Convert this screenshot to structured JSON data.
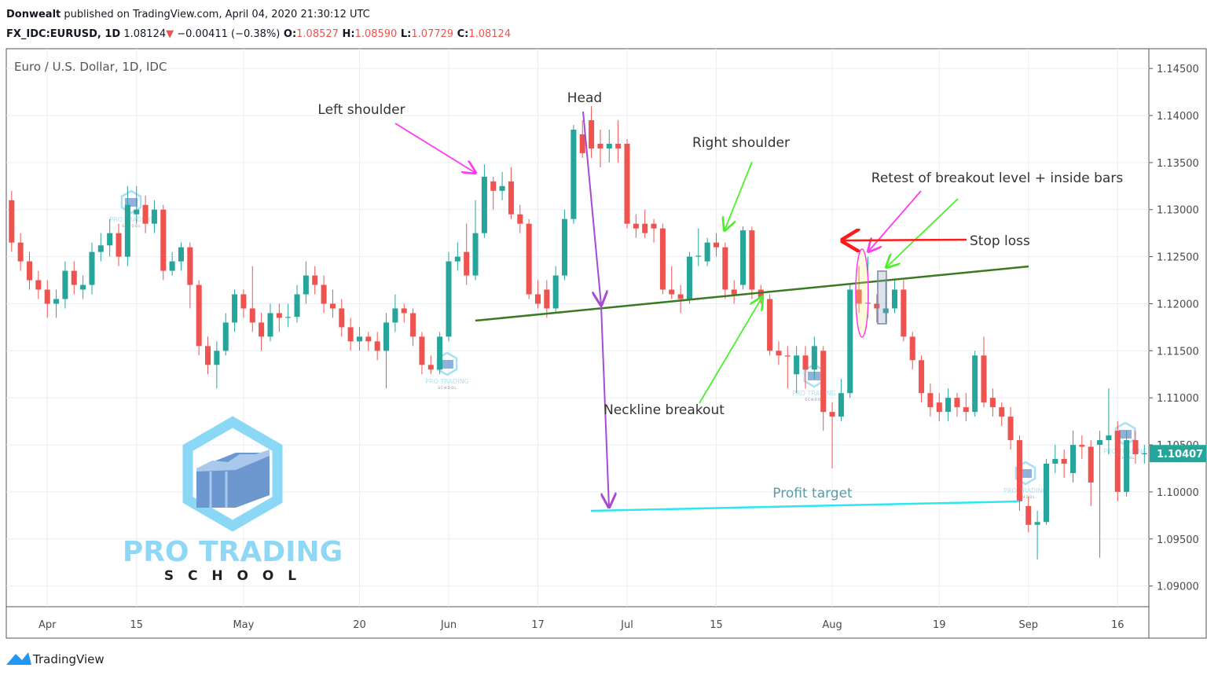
{
  "header": {
    "author": "Donwealt",
    "published": " published on TradingView.com, April 04, 2020 21:30:12 UTC",
    "symbol": "FX_IDC:EURUSD, 1D",
    "last": " 1.08124",
    "arrow": "▼",
    "change": " −0.00411 (−0.38%)",
    "o_label": " O:",
    "o": "1.08527",
    "h_label": " H:",
    "h": "1.08590",
    "l_label": " L:",
    "l": "1.07729",
    "c_label": " C:",
    "c": "1.08124"
  },
  "chart_data": {
    "type": "candlestick",
    "legend_title": "Euro / U.S. Dollar, 1D, IDC",
    "categories": [
      null,
      null,
      null,
      null,
      "Apr",
      null,
      null,
      null,
      null,
      null,
      null,
      null,
      null,
      null,
      "15",
      null,
      null,
      null,
      null,
      null,
      null,
      null,
      null,
      null,
      null,
      null,
      "May",
      null,
      null,
      null,
      null,
      null,
      null,
      null,
      null,
      null,
      null,
      null,
      null,
      "20",
      null,
      null,
      null,
      null,
      null,
      null,
      null,
      null,
      null,
      "Jun",
      null,
      null,
      null,
      null,
      null,
      null,
      null,
      null,
      null,
      "17",
      null,
      null,
      null,
      null,
      null,
      null,
      null,
      null,
      null,
      "Jul",
      null,
      null,
      null,
      null,
      null,
      null,
      null,
      null,
      null,
      "15",
      null,
      null,
      null,
      null,
      null,
      null,
      null,
      null,
      null,
      null,
      null,
      null,
      "Aug",
      null,
      null,
      null,
      null,
      null,
      null,
      null,
      null,
      null,
      null,
      null,
      "19",
      null,
      null,
      null,
      null,
      null,
      null,
      null,
      null,
      null,
      "Sep",
      null,
      null,
      null,
      null,
      null,
      null,
      null,
      null,
      null,
      "16",
      null,
      null,
      null
    ],
    "open": [
      1.131,
      1.1265,
      1.1245,
      1.1225,
      1.1215,
      1.12,
      1.1205,
      1.1235,
      1.1215,
      1.122,
      1.1255,
      1.1262,
      1.1275,
      1.125,
      1.1295,
      1.1305,
      1.1285,
      1.13,
      1.1235,
      1.1245,
      1.126,
      1.122,
      1.1155,
      1.1135,
      1.115,
      1.118,
      1.121,
      1.1195,
      1.118,
      1.1165,
      1.119,
      1.1185,
      1.1186,
      1.121,
      1.123,
      1.122,
      1.12,
      1.1195,
      1.1175,
      1.116,
      1.1165,
      1.116,
      1.115,
      1.118,
      1.1195,
      1.119,
      1.1165,
      1.1135,
      1.113,
      1.1165,
      1.1245,
      1.1255,
      1.123,
      1.1275,
      1.133,
      1.132,
      1.133,
      1.1295,
      1.1285,
      1.121,
      1.1215,
      1.1195,
      1.123,
      1.129,
      1.138,
      1.1395,
      1.137,
      1.1365,
      1.137,
      1.137,
      1.1285,
      1.1285,
      1.1285,
      1.128,
      1.1215,
      1.121,
      1.1205,
      1.125,
      1.1245,
      1.1265,
      1.126,
      1.1215,
      1.122,
      1.1278,
      1.1215,
      1.1205,
      1.115,
      1.1145,
      1.1125,
      1.1145,
      1.113,
      1.115,
      1.1085,
      1.108,
      1.1105,
      1.1215,
      1.12,
      1.12,
      1.119,
      1.1195,
      1.1215,
      1.1165,
      1.114,
      1.1105,
      1.1095,
      1.1085,
      1.11,
      1.109,
      1.1085,
      1.1145,
      1.11,
      1.109,
      1.108,
      1.1055,
      1.0985,
      1.0965,
      1.0968,
      1.103,
      1.1035,
      1.102,
      1.105,
      1.1048,
      1.105,
      1.1055,
      1.1065,
      1.1,
      1.1055,
      1.104
    ],
    "high": [
      1.132,
      1.1275,
      1.1255,
      1.1235,
      1.1225,
      1.1215,
      1.1245,
      1.1245,
      1.123,
      1.1265,
      1.1275,
      1.129,
      1.1285,
      1.1325,
      1.1325,
      1.1315,
      1.131,
      1.1305,
      1.1255,
      1.1265,
      1.1265,
      1.1225,
      1.1165,
      1.116,
      1.119,
      1.1215,
      1.1215,
      1.124,
      1.119,
      1.12,
      1.12,
      1.12,
      1.122,
      1.1245,
      1.124,
      1.123,
      1.1215,
      1.1205,
      1.1185,
      1.1175,
      1.117,
      1.117,
      1.119,
      1.121,
      1.12,
      1.1195,
      1.117,
      1.1145,
      1.117,
      1.1255,
      1.1265,
      1.1285,
      1.131,
      1.1348,
      1.1335,
      1.134,
      1.1345,
      1.1305,
      1.129,
      1.1225,
      1.1225,
      1.124,
      1.13,
      1.139,
      1.1395,
      1.141,
      1.1385,
      1.1385,
      1.1395,
      1.1375,
      1.1295,
      1.13,
      1.129,
      1.1285,
      1.124,
      1.122,
      1.1255,
      1.128,
      1.127,
      1.1275,
      1.1265,
      1.1225,
      1.1282,
      1.1282,
      1.122,
      1.121,
      1.116,
      1.1155,
      1.1155,
      1.1155,
      1.1165,
      1.1155,
      1.1095,
      1.112,
      1.122,
      1.124,
      1.125,
      1.121,
      1.1225,
      1.1225,
      1.1225,
      1.117,
      1.1145,
      1.1115,
      1.1105,
      1.111,
      1.1105,
      1.1105,
      1.115,
      1.1165,
      1.111,
      1.1095,
      1.109,
      1.106,
      1.0995,
      1.098,
      1.1035,
      1.105,
      1.1045,
      1.1065,
      1.106,
      1.1055,
      1.1065,
      1.111,
      1.1075,
      1.1065,
      1.1065,
      1.105
    ],
    "low": [
      1.1255,
      1.1235,
      1.1215,
      1.1205,
      1.1185,
      1.1185,
      1.1195,
      1.121,
      1.1205,
      1.121,
      1.1245,
      1.125,
      1.124,
      1.124,
      1.1285,
      1.1275,
      1.1275,
      1.1225,
      1.123,
      1.1235,
      1.1195,
      1.1145,
      1.1125,
      1.111,
      1.1145,
      1.117,
      1.1185,
      1.117,
      1.115,
      1.116,
      1.117,
      1.1175,
      1.118,
      1.12,
      1.121,
      1.119,
      1.1185,
      1.1165,
      1.115,
      1.115,
      1.115,
      1.114,
      1.111,
      1.117,
      1.118,
      1.1155,
      1.1125,
      1.1125,
      1.1125,
      1.116,
      1.1235,
      1.122,
      1.1225,
      1.127,
      1.13,
      1.131,
      1.129,
      1.1275,
      1.1205,
      1.1195,
      1.1185,
      1.119,
      1.1225,
      1.1285,
      1.1355,
      1.1355,
      1.1345,
      1.135,
      1.135,
      1.128,
      1.127,
      1.127,
      1.1265,
      1.121,
      1.1205,
      1.119,
      1.12,
      1.124,
      1.124,
      1.125,
      1.1205,
      1.12,
      1.1215,
      1.1205,
      1.12,
      1.1145,
      1.1135,
      1.111,
      1.1105,
      1.111,
      1.112,
      1.1065,
      1.1025,
      1.1075,
      1.11,
      1.119,
      1.1185,
      1.118,
      1.118,
      1.119,
      1.116,
      1.113,
      1.1095,
      1.108,
      1.1075,
      1.1075,
      1.108,
      1.1075,
      1.108,
      1.109,
      1.108,
      1.107,
      1.1045,
      1.098,
      1.0957,
      1.0928,
      1.0965,
      1.102,
      1.1015,
      1.101,
      1.1035,
      1.0985,
      1.093,
      1.104,
      1.099,
      1.0995,
      1.103,
      1.103
    ],
    "close": [
      1.1265,
      1.1245,
      1.1225,
      1.1215,
      1.12,
      1.1205,
      1.1235,
      1.122,
      1.122,
      1.1255,
      1.1262,
      1.1275,
      1.125,
      1.1305,
      1.13,
      1.1285,
      1.13,
      1.1235,
      1.1245,
      1.126,
      1.122,
      1.1155,
      1.1135,
      1.115,
      1.118,
      1.121,
      1.1195,
      1.118,
      1.1165,
      1.119,
      1.1185,
      1.1186,
      1.121,
      1.123,
      1.122,
      1.12,
      1.1195,
      1.1175,
      1.116,
      1.1165,
      1.116,
      1.115,
      1.118,
      1.1195,
      1.119,
      1.1165,
      1.1135,
      1.113,
      1.1165,
      1.1245,
      1.125,
      1.123,
      1.1275,
      1.1335,
      1.132,
      1.1325,
      1.1295,
      1.1285,
      1.121,
      1.12,
      1.1195,
      1.123,
      1.129,
      1.1385,
      1.136,
      1.1365,
      1.1365,
      1.137,
      1.1365,
      1.1285,
      1.128,
      1.1275,
      1.128,
      1.1215,
      1.121,
      1.1205,
      1.125,
      1.1251,
      1.1265,
      1.126,
      1.1215,
      1.121,
      1.1278,
      1.1215,
      1.1205,
      1.115,
      1.1145,
      1.1144,
      1.1145,
      1.113,
      1.1155,
      1.1085,
      1.108,
      1.1105,
      1.1215,
      1.12,
      1.1201,
      1.1195,
      1.1195,
      1.1215,
      1.1165,
      1.114,
      1.1105,
      1.109,
      1.1085,
      1.11,
      1.109,
      1.1085,
      1.1145,
      1.1095,
      1.109,
      1.108,
      1.1055,
      1.099,
      1.0965,
      1.0968,
      1.103,
      1.1035,
      1.103,
      1.105,
      1.1048,
      1.101,
      1.1055,
      1.106,
      1.1,
      1.1055,
      1.104,
      1.1041
    ],
    "up_color": "#26a69a",
    "down_color": "#ef5350",
    "xlim": [
      -0.6,
      127.5
    ],
    "ylim": [
      1.0878,
      1.1471
    ],
    "yticks": [
      {
        "value": 1.09,
        "label": "1.09000"
      },
      {
        "value": 1.095,
        "label": "1.09500"
      },
      {
        "value": 1.1,
        "label": "1.10000"
      },
      {
        "value": 1.105,
        "label": "1.10500"
      },
      {
        "value": 1.11,
        "label": "1.11000"
      },
      {
        "value": 1.115,
        "label": "1.11500"
      },
      {
        "value": 1.12,
        "label": "1.12000"
      },
      {
        "value": 1.125,
        "label": "1.12500"
      },
      {
        "value": 1.13,
        "label": "1.13000"
      },
      {
        "value": 1.135,
        "label": "1.13500"
      },
      {
        "value": 1.14,
        "label": "1.14000"
      },
      {
        "value": 1.145,
        "label": "1.14500"
      }
    ],
    "last_price": 1.10407,
    "grid": true,
    "annotations": {
      "head": "Head",
      "left_shoulder": "Left shoulder",
      "right_shoulder": "Right shoulder",
      "retest": "Retest of breakout level + inside bars",
      "stop_loss": "Stop loss",
      "neckline": "Neckline breakout",
      "target": "Profit target"
    }
  },
  "watermark": {
    "line1": "PRO TRADING",
    "line2": "S C H O O L"
  },
  "footer": {
    "brand": "TradingView"
  }
}
